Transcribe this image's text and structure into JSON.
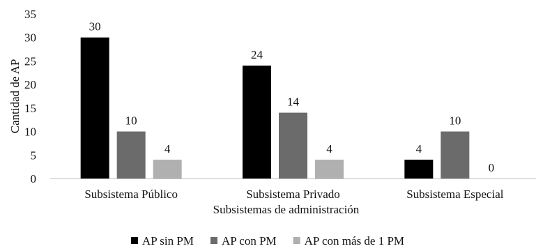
{
  "chart_data": {
    "type": "bar",
    "categories": [
      "Subsistema Público",
      "Subsistema Privado",
      "Subsistema Especial"
    ],
    "series": [
      {
        "name": "AP sin PM",
        "values": [
          30,
          24,
          4
        ],
        "color": "#000000"
      },
      {
        "name": "AP con PM",
        "values": [
          10,
          14,
          10
        ],
        "color": "#6b6b6b"
      },
      {
        "name": "AP con más de 1 PM",
        "values": [
          4,
          4,
          0
        ],
        "color": "#b0b0b0"
      }
    ],
    "xlabel": "Subsistemas de administración",
    "ylabel": "Cantidad de AP",
    "ylim": [
      0,
      35
    ],
    "yticks": [
      0,
      5,
      10,
      15,
      20,
      25,
      30,
      35
    ],
    "grid": false,
    "legend_position": "bottom"
  }
}
